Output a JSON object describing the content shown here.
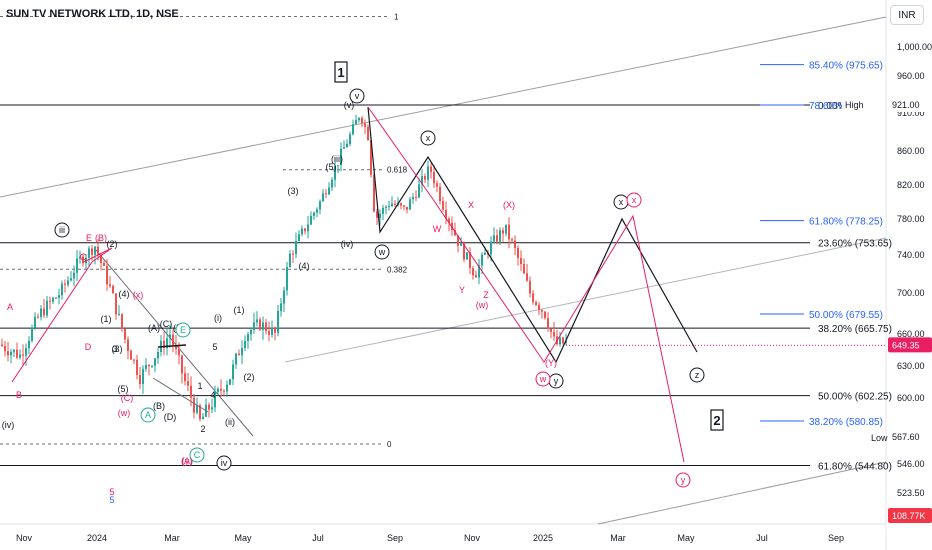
{
  "title": "SUN TV NETWORK LTD, 1D, NSE",
  "currency": "INR",
  "chart_data": {
    "type": "candlestick",
    "symbol": "SUN TV NETWORK LTD",
    "interval": "1D",
    "exchange": "NSE",
    "ylim": [
      500,
      1050
    ],
    "y_ticks": [
      "1,000.00",
      "960.00",
      "921.00",
      "910.00",
      "860.00",
      "820.00",
      "780.00",
      "740.00",
      "700.00",
      "660.00",
      "630.00",
      "600.00",
      "567.60",
      "546.00",
      "523.50"
    ],
    "x_ticks": [
      "Nov",
      "2024",
      "Mar",
      "May",
      "Jul",
      "Sep",
      "Nov",
      "2025",
      "Mar",
      "May",
      "Jul",
      "Sep"
    ],
    "price_labels": {
      "last": "649.35",
      "high_value": "921.00",
      "high_text": "High",
      "low_value": "567.60",
      "low_text": "Low",
      "volume": "108.77K"
    },
    "horizontal_levels": [
      {
        "text": "0.00% (921)",
        "price": 921,
        "color": "#131722"
      },
      {
        "text": "23.60% (753.65)",
        "price": 753.65,
        "color": "#131722"
      },
      {
        "text": "38.20% (665.75)",
        "price": 665.75,
        "color": "#131722"
      },
      {
        "text": "50.00% (602.25)",
        "price": 602.25,
        "color": "#131722"
      },
      {
        "text": "61.80% (544.80)",
        "price": 544.8,
        "color": "#131722"
      }
    ],
    "extension_levels": [
      {
        "text": "85.40% (975.65)",
        "price": 975.65,
        "color": "#2962ff"
      },
      {
        "text": "78.60% (9",
        "price": 921,
        "color": "#2962ff"
      },
      {
        "text": "61.80% (778.25)",
        "price": 778.25,
        "color": "#2962ff"
      },
      {
        "text": "50.00% (679.55)",
        "price": 679.55,
        "color": "#2962ff"
      },
      {
        "text": "38.20% (580.85)",
        "price": 580.85,
        "color": "#2962ff"
      }
    ],
    "dashed_levels": [
      {
        "text": "1",
        "price": 1042
      },
      {
        "text": "0.618",
        "price": 838
      },
      {
        "text": "0.382",
        "price": 725
      },
      {
        "text": "0",
        "price": 562
      }
    ],
    "wave_labels": [
      {
        "text": "1",
        "style": "box",
        "color": "#131722"
      },
      {
        "text": "2",
        "style": "box",
        "color": "#131722"
      },
      {
        "text": "v",
        "style": "circle",
        "color": "#131722"
      },
      {
        "text": "x",
        "style": "circle",
        "color": "#131722"
      },
      {
        "text": "w",
        "style": "circle",
        "color": "#131722"
      },
      {
        "text": "x",
        "style": "circle",
        "color": "#131722"
      },
      {
        "text": "x",
        "style": "circle",
        "color": "#e91e63"
      },
      {
        "text": "y",
        "style": "circle",
        "color": "#131722"
      },
      {
        "text": "w",
        "style": "circle",
        "color": "#e91e63"
      },
      {
        "text": "z",
        "style": "circle",
        "color": "#131722"
      },
      {
        "text": "y",
        "style": "circle",
        "color": "#e91e63"
      },
      {
        "text": "iii",
        "style": "circle",
        "color": "#131722"
      },
      {
        "text": "iv",
        "style": "circle",
        "color": "#131722"
      },
      {
        "text": "(v)",
        "style": "plain",
        "color": "#131722"
      },
      {
        "text": "(iii)",
        "style": "plain",
        "color": "#131722"
      },
      {
        "text": "(iv)",
        "style": "plain",
        "color": "#131722"
      },
      {
        "text": "(i)",
        "style": "plain",
        "color": "#131722"
      },
      {
        "text": "(ii)",
        "style": "plain",
        "color": "#131722"
      },
      {
        "text": "(iv)",
        "style": "plain",
        "color": "#131722"
      },
      {
        "text": "(5)",
        "style": "plain",
        "color": "#131722"
      },
      {
        "text": "(3)",
        "style": "plain",
        "color": "#131722"
      },
      {
        "text": "(4)",
        "style": "plain",
        "color": "#131722"
      },
      {
        "text": "(2)",
        "style": "plain",
        "color": "#131722"
      },
      {
        "text": "(1)",
        "style": "plain",
        "color": "#131722"
      },
      {
        "text": "(3)",
        "style": "plain",
        "color": "#131722"
      },
      {
        "text": "(4)",
        "style": "plain",
        "color": "#131722"
      },
      {
        "text": "(5)",
        "style": "plain",
        "color": "#131722"
      },
      {
        "text": "(1)",
        "style": "plain",
        "color": "#131722"
      },
      {
        "text": "(2)",
        "style": "plain",
        "color": "#131722"
      },
      {
        "text": "(A)",
        "style": "plain",
        "color": "#131722"
      },
      {
        "text": "(B)",
        "style": "plain",
        "color": "#131722"
      },
      {
        "text": "(C)",
        "style": "plain",
        "color": "#131722"
      },
      {
        "text": "(D)",
        "style": "plain",
        "color": "#131722"
      },
      {
        "text": "(E)",
        "style": "plain",
        "color": "#131722"
      },
      {
        "text": "(x)",
        "style": "plain",
        "color": "#e91e63"
      },
      {
        "text": "(w)",
        "style": "plain",
        "color": "#e91e63"
      },
      {
        "text": "(y)",
        "style": "plain",
        "color": "#e91e63"
      },
      {
        "text": "(w)",
        "style": "plain",
        "color": "#e91e63"
      },
      {
        "text": "(X)",
        "style": "plain",
        "color": "#e91e63"
      },
      {
        "text": "(Y)",
        "style": "plain",
        "color": "#e91e63"
      },
      {
        "text": "(A)",
        "style": "plain",
        "color": "#e91e63"
      },
      {
        "text": "(B)",
        "style": "plain",
        "color": "#e91e63"
      },
      {
        "text": "(C)",
        "style": "plain",
        "color": "#e91e63"
      },
      {
        "text": "A",
        "style": "plain",
        "color": "#e91e63"
      },
      {
        "text": "B",
        "style": "plain",
        "color": "#e91e63"
      },
      {
        "text": "C",
        "style": "plain",
        "color": "#e91e63"
      },
      {
        "text": "D",
        "style": "plain",
        "color": "#e91e63"
      },
      {
        "text": "E",
        "style": "plain",
        "color": "#e91e63"
      },
      {
        "text": "W",
        "style": "plain",
        "color": "#e91e63"
      },
      {
        "text": "X",
        "style": "plain",
        "color": "#e91e63"
      },
      {
        "text": "Y",
        "style": "plain",
        "color": "#e91e63"
      },
      {
        "text": "Z",
        "style": "plain",
        "color": "#e91e63"
      },
      {
        "text": "1",
        "style": "plain",
        "color": "#131722"
      },
      {
        "text": "2",
        "style": "plain",
        "color": "#131722"
      },
      {
        "text": "3",
        "style": "plain",
        "color": "#131722"
      },
      {
        "text": "4",
        "style": "plain",
        "color": "#131722"
      },
      {
        "text": "5",
        "style": "plain",
        "color": "#131722"
      },
      {
        "text": "5",
        "style": "plain",
        "color": "#e91e63"
      },
      {
        "text": "5",
        "style": "plain",
        "color": "#2962ff"
      },
      {
        "text": "A",
        "style": "circle",
        "color": "#26a69a"
      },
      {
        "text": "C",
        "style": "circle",
        "color": "#26a69a"
      },
      {
        "text": "E",
        "style": "circle",
        "color": "#26a69a"
      }
    ],
    "colors": {
      "up": "#26a69a",
      "down": "#ef5350",
      "black_path": "#131722",
      "pink_path": "#e91e63",
      "extension": "#2962ff",
      "channel": "#9e9e9e",
      "last_price_tag": "#e91e63",
      "volume_tag": "#f23645"
    }
  }
}
